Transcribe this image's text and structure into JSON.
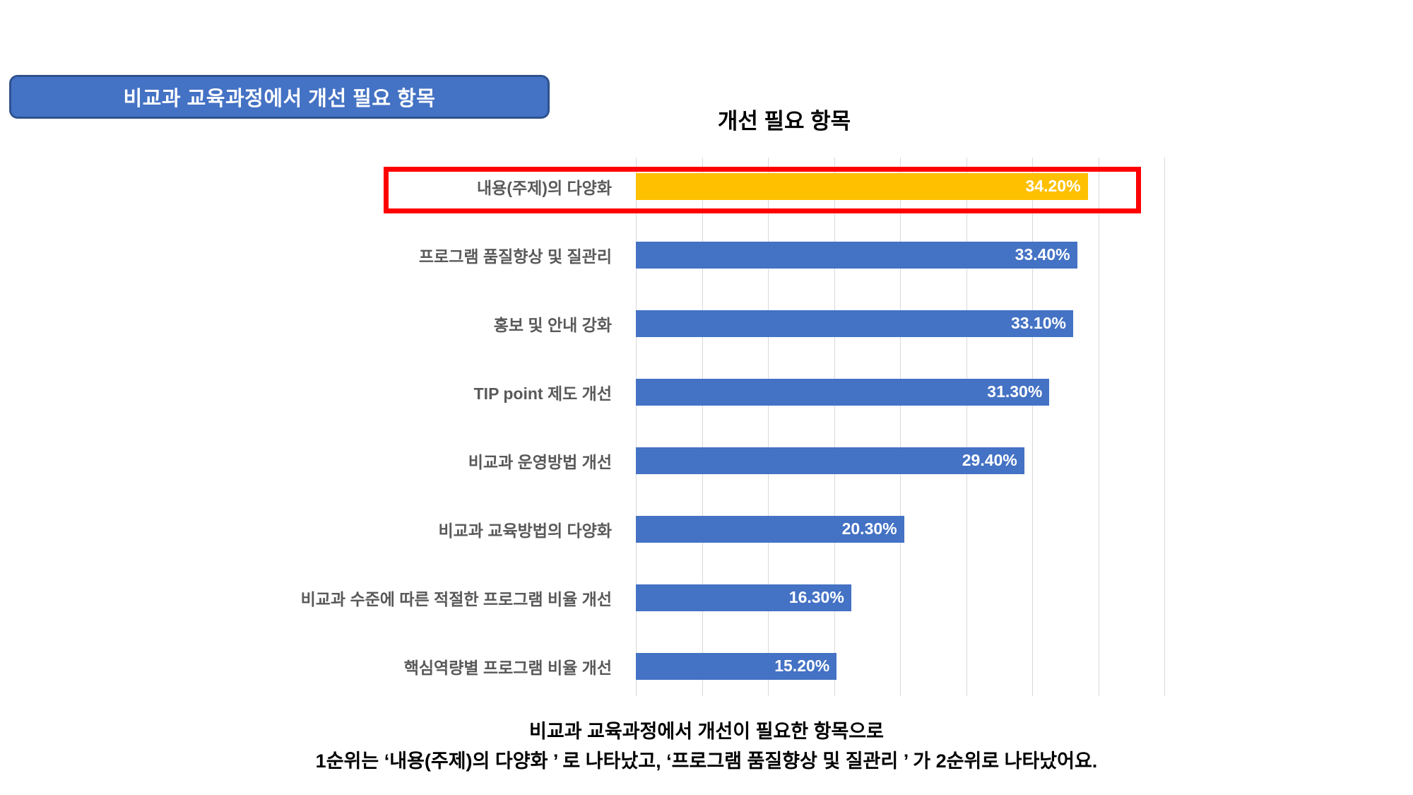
{
  "header": {
    "label": "비교과 교육과정에서 개선 필요 항목"
  },
  "chart_data": {
    "type": "bar",
    "orientation": "horizontal",
    "title": "개선 필요 항목",
    "categories": [
      "내용(주제)의 다양화",
      "프로그램 품질향상 및 질관리",
      "홍보 및 안내 강화",
      "TIP point 제도 개선",
      "비교과 운영방법 개선",
      "비교과 교육방법의 다양화",
      "비교과 수준에 따른 적절한 프로그램 비율 개선",
      "핵심역량별 프로그램 비율 개선"
    ],
    "values": [
      34.2,
      33.4,
      33.1,
      31.3,
      29.4,
      20.3,
      16.3,
      15.2
    ],
    "value_labels": [
      "34.20%",
      "33.40%",
      "33.10%",
      "31.30%",
      "29.40%",
      "20.30%",
      "16.30%",
      "15.20%"
    ],
    "xlim": [
      0,
      40
    ],
    "gridline_step_pct": 5,
    "grid": "vertical-only",
    "axis_tick_labels_visible": false,
    "legend": "none",
    "highlight_index": 0,
    "bar_color_default": "#4472C4",
    "bar_color_highlight": "#FFC000",
    "value_label_color": "#FFFFFF",
    "category_label_color": "#595959",
    "gridline_color": "#D9D9D9",
    "highlight_box_color": "#FE0000"
  },
  "caption": {
    "line1": "비교과 교육과정에서 개선이 필요한 항목으로",
    "line2": "1순위는 ‘내용(주제)의 다양화 ’ 로 나타났고, ‘프로그램 품질향상 및 질관리 ’ 가 2순위로 나타났어요."
  }
}
